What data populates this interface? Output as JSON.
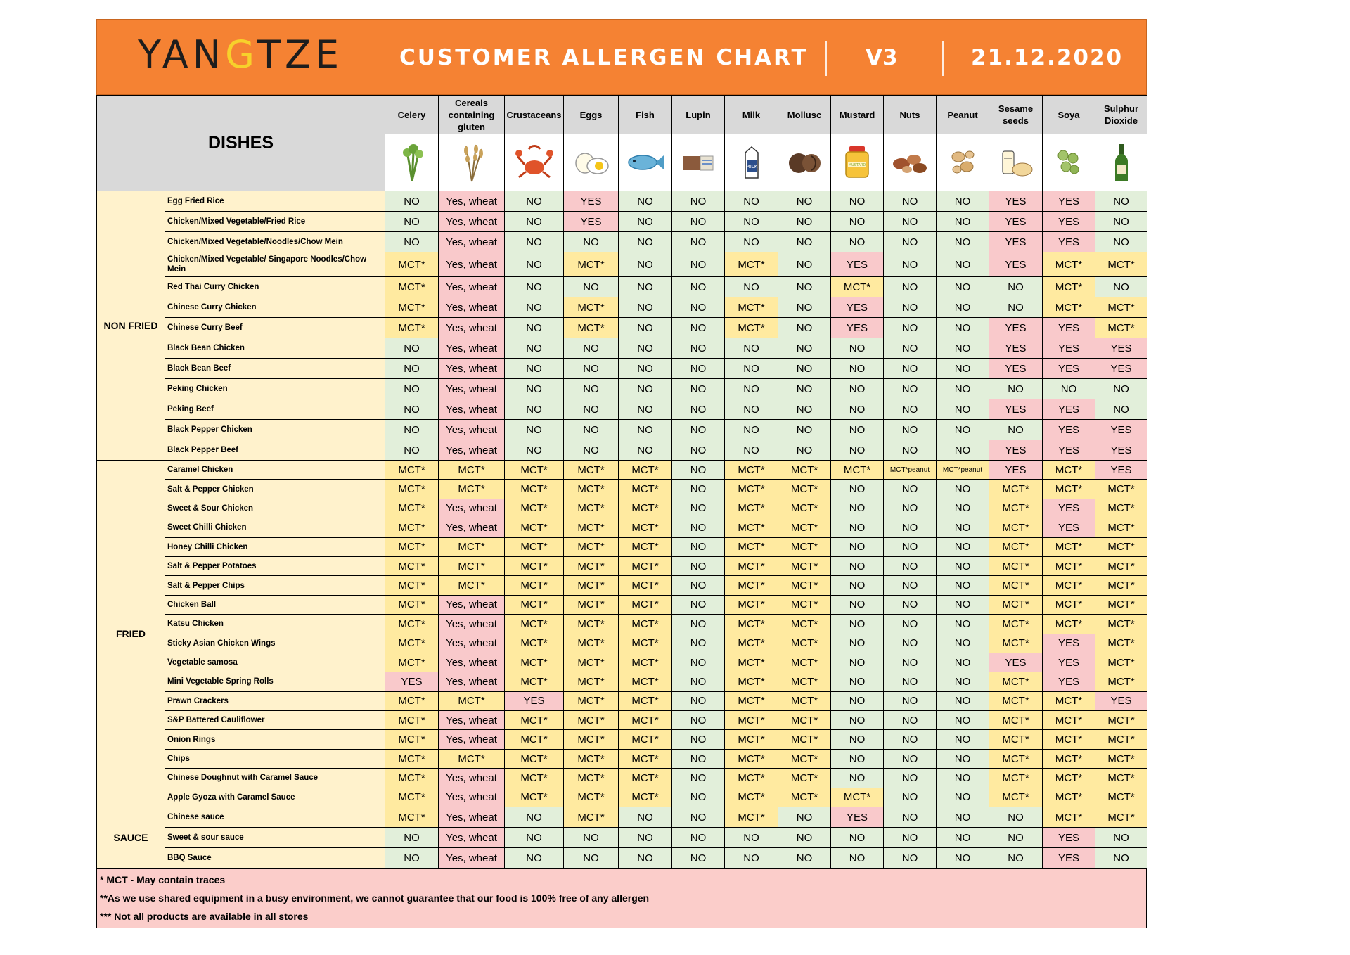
{
  "header": {
    "logo": "YANGTZE",
    "title": "CUSTOMER ALLERGEN CHART",
    "version": "V3",
    "date": "21.12.2020"
  },
  "table": {
    "dishes_label": "DISHES",
    "allergens": [
      {
        "label": "Celery",
        "icon": "celery-icon"
      },
      {
        "label": "Cereals containing gluten",
        "icon": "wheat-icon"
      },
      {
        "label": "Crustaceans",
        "icon": "crab-icon"
      },
      {
        "label": "Eggs",
        "icon": "egg-icon"
      },
      {
        "label": "Fish",
        "icon": "fish-icon"
      },
      {
        "label": "Lupin",
        "icon": "lupin-icon"
      },
      {
        "label": "Milk",
        "icon": "milk-icon"
      },
      {
        "label": "Mollusc",
        "icon": "mollusc-icon"
      },
      {
        "label": "Mustard",
        "icon": "mustard-icon"
      },
      {
        "label": "Nuts",
        "icon": "nuts-icon"
      },
      {
        "label": "Peanut",
        "icon": "peanut-icon"
      },
      {
        "label": "Sesame seeds",
        "icon": "sesame-icon"
      },
      {
        "label": "Soya",
        "icon": "soya-icon"
      },
      {
        "label": "Sulphur Dioxide",
        "icon": "wine-bottle-icon"
      }
    ],
    "categories": [
      {
        "name": "NON FRIED",
        "dishes": [
          {
            "name": "Egg Fried Rice",
            "values": [
              "NO",
              "Yes, wheat",
              "NO",
              "YES",
              "NO",
              "NO",
              "NO",
              "NO",
              "NO",
              "NO",
              "NO",
              "YES",
              "YES",
              "NO"
            ]
          },
          {
            "name": "Chicken/Mixed Vegetable/Fried Rice",
            "values": [
              "NO",
              "Yes, wheat",
              "NO",
              "YES",
              "NO",
              "NO",
              "NO",
              "NO",
              "NO",
              "NO",
              "NO",
              "YES",
              "YES",
              "NO"
            ]
          },
          {
            "name": "Chicken/Mixed Vegetable/Noodles/Chow Mein",
            "values": [
              "NO",
              "Yes, wheat",
              "NO",
              "NO",
              "NO",
              "NO",
              "NO",
              "NO",
              "NO",
              "NO",
              "NO",
              "YES",
              "YES",
              "NO"
            ]
          },
          {
            "name": "Chicken/Mixed Vegetable/ Singapore Noodles/Chow Mein",
            "values": [
              "MCT*",
              "Yes, wheat",
              "NO",
              "MCT*",
              "NO",
              "NO",
              "MCT*",
              "NO",
              "YES",
              "NO",
              "NO",
              "YES",
              "MCT*",
              "MCT*"
            ]
          },
          {
            "name": "Red Thai Curry Chicken",
            "values": [
              "MCT*",
              "Yes, wheat",
              "NO",
              "NO",
              "NO",
              "NO",
              "NO",
              "NO",
              "MCT*",
              "NO",
              "NO",
              "NO",
              "MCT*",
              "NO"
            ]
          },
          {
            "name": "Chinese Curry Chicken",
            "values": [
              "MCT*",
              "Yes, wheat",
              "NO",
              "MCT*",
              "NO",
              "NO",
              "MCT*",
              "NO",
              "YES",
              "NO",
              "NO",
              "NO",
              "MCT*",
              "MCT*"
            ]
          },
          {
            "name": "Chinese Curry Beef",
            "values": [
              "MCT*",
              "Yes, wheat",
              "NO",
              "MCT*",
              "NO",
              "NO",
              "MCT*",
              "NO",
              "YES",
              "NO",
              "NO",
              "YES",
              "YES",
              "MCT*"
            ]
          },
          {
            "name": "Black Bean Chicken",
            "values": [
              "NO",
              "Yes, wheat",
              "NO",
              "NO",
              "NO",
              "NO",
              "NO",
              "NO",
              "NO",
              "NO",
              "NO",
              "YES",
              "YES",
              "YES"
            ]
          },
          {
            "name": "Black Bean Beef",
            "values": [
              "NO",
              "Yes, wheat",
              "NO",
              "NO",
              "NO",
              "NO",
              "NO",
              "NO",
              "NO",
              "NO",
              "NO",
              "YES",
              "YES",
              "YES"
            ]
          },
          {
            "name": "Peking Chicken",
            "values": [
              "NO",
              "Yes, wheat",
              "NO",
              "NO",
              "NO",
              "NO",
              "NO",
              "NO",
              "NO",
              "NO",
              "NO",
              "NO",
              "NO",
              "NO"
            ]
          },
          {
            "name": "Peking Beef",
            "values": [
              "NO",
              "Yes, wheat",
              "NO",
              "NO",
              "NO",
              "NO",
              "NO",
              "NO",
              "NO",
              "NO",
              "NO",
              "YES",
              "YES",
              "NO"
            ]
          },
          {
            "name": "Black Pepper Chicken",
            "values": [
              "NO",
              "Yes, wheat",
              "NO",
              "NO",
              "NO",
              "NO",
              "NO",
              "NO",
              "NO",
              "NO",
              "NO",
              "NO",
              "YES",
              "YES"
            ]
          },
          {
            "name": "Black Pepper Beef",
            "values": [
              "NO",
              "Yes, wheat",
              "NO",
              "NO",
              "NO",
              "NO",
              "NO",
              "NO",
              "NO",
              "NO",
              "NO",
              "YES",
              "YES",
              "YES"
            ]
          }
        ]
      },
      {
        "name": "FRIED",
        "dishes": [
          {
            "name": "Caramel Chicken",
            "values": [
              "MCT*",
              "MCT*",
              "MCT*",
              "MCT*",
              "MCT*",
              "NO",
              "MCT*",
              "MCT*",
              "MCT*",
              "MCT*peanut",
              "MCT*peanut",
              "YES",
              "MCT*",
              "YES"
            ]
          },
          {
            "name": "Salt & Pepper Chicken",
            "values": [
              "MCT*",
              "MCT*",
              "MCT*",
              "MCT*",
              "MCT*",
              "NO",
              "MCT*",
              "MCT*",
              "NO",
              "NO",
              "NO",
              "MCT*",
              "MCT*",
              "MCT*"
            ]
          },
          {
            "name": "Sweet & Sour Chicken",
            "values": [
              "MCT*",
              "Yes, wheat",
              "MCT*",
              "MCT*",
              "MCT*",
              "NO",
              "MCT*",
              "MCT*",
              "NO",
              "NO",
              "NO",
              "MCT*",
              "YES",
              "MCT*"
            ]
          },
          {
            "name": "Sweet Chilli Chicken",
            "values": [
              "MCT*",
              "Yes, wheat",
              "MCT*",
              "MCT*",
              "MCT*",
              "NO",
              "MCT*",
              "MCT*",
              "NO",
              "NO",
              "NO",
              "MCT*",
              "YES",
              "MCT*"
            ]
          },
          {
            "name": "Honey Chilli Chicken",
            "values": [
              "MCT*",
              "MCT*",
              "MCT*",
              "MCT*",
              "MCT*",
              "NO",
              "MCT*",
              "MCT*",
              "NO",
              "NO",
              "NO",
              "MCT*",
              "MCT*",
              "MCT*"
            ]
          },
          {
            "name": "Salt & Pepper Potatoes",
            "values": [
              "MCT*",
              "MCT*",
              "MCT*",
              "MCT*",
              "MCT*",
              "NO",
              "MCT*",
              "MCT*",
              "NO",
              "NO",
              "NO",
              "MCT*",
              "MCT*",
              "MCT*"
            ]
          },
          {
            "name": "Salt & Pepper Chips",
            "values": [
              "MCT*",
              "MCT*",
              "MCT*",
              "MCT*",
              "MCT*",
              "NO",
              "MCT*",
              "MCT*",
              "NO",
              "NO",
              "NO",
              "MCT*",
              "MCT*",
              "MCT*"
            ]
          },
          {
            "name": "Chicken Ball",
            "values": [
              "MCT*",
              "Yes, wheat",
              "MCT*",
              "MCT*",
              "MCT*",
              "NO",
              "MCT*",
              "MCT*",
              "NO",
              "NO",
              "NO",
              "MCT*",
              "MCT*",
              "MCT*"
            ]
          },
          {
            "name": "Katsu Chicken",
            "values": [
              "MCT*",
              "Yes, wheat",
              "MCT*",
              "MCT*",
              "MCT*",
              "NO",
              "MCT*",
              "MCT*",
              "NO",
              "NO",
              "NO",
              "MCT*",
              "MCT*",
              "MCT*"
            ]
          },
          {
            "name": "Sticky Asian Chicken Wings",
            "values": [
              "MCT*",
              "Yes, wheat",
              "MCT*",
              "MCT*",
              "MCT*",
              "NO",
              "MCT*",
              "MCT*",
              "NO",
              "NO",
              "NO",
              "MCT*",
              "YES",
              "MCT*"
            ]
          },
          {
            "name": "Vegetable samosa",
            "values": [
              "MCT*",
              "Yes, wheat",
              "MCT*",
              "MCT*",
              "MCT*",
              "NO",
              "MCT*",
              "MCT*",
              "NO",
              "NO",
              "NO",
              "YES",
              "YES",
              "MCT*"
            ]
          },
          {
            "name": "Mini Vegetable Spring Rolls",
            "values": [
              "YES",
              "Yes, wheat",
              "MCT*",
              "MCT*",
              "MCT*",
              "NO",
              "MCT*",
              "MCT*",
              "NO",
              "NO",
              "NO",
              "MCT*",
              "YES",
              "MCT*"
            ]
          },
          {
            "name": "Prawn Crackers",
            "values": [
              "MCT*",
              "MCT*",
              "YES",
              "MCT*",
              "MCT*",
              "NO",
              "MCT*",
              "MCT*",
              "NO",
              "NO",
              "NO",
              "MCT*",
              "MCT*",
              "YES"
            ]
          },
          {
            "name": "S&P Battered Cauliflower",
            "values": [
              "MCT*",
              "Yes, wheat",
              "MCT*",
              "MCT*",
              "MCT*",
              "NO",
              "MCT*",
              "MCT*",
              "NO",
              "NO",
              "NO",
              "MCT*",
              "MCT*",
              "MCT*"
            ]
          },
          {
            "name": "Onion Rings",
            "values": [
              "MCT*",
              "Yes, wheat",
              "MCT*",
              "MCT*",
              "MCT*",
              "NO",
              "MCT*",
              "MCT*",
              "NO",
              "NO",
              "NO",
              "MCT*",
              "MCT*",
              "MCT*"
            ]
          },
          {
            "name": "Chips",
            "values": [
              "MCT*",
              "MCT*",
              "MCT*",
              "MCT*",
              "MCT*",
              "NO",
              "MCT*",
              "MCT*",
              "NO",
              "NO",
              "NO",
              "MCT*",
              "MCT*",
              "MCT*"
            ]
          },
          {
            "name": "Chinese Doughnut with Caramel Sauce",
            "values": [
              "MCT*",
              "Yes, wheat",
              "MCT*",
              "MCT*",
              "MCT*",
              "NO",
              "MCT*",
              "MCT*",
              "NO",
              "NO",
              "NO",
              "MCT*",
              "MCT*",
              "MCT*"
            ]
          },
          {
            "name": "Apple Gyoza with Caramel Sauce",
            "values": [
              "MCT*",
              "Yes, wheat",
              "MCT*",
              "MCT*",
              "MCT*",
              "NO",
              "MCT*",
              "MCT*",
              "MCT*",
              "NO",
              "NO",
              "MCT*",
              "MCT*",
              "MCT*"
            ]
          }
        ]
      },
      {
        "name": "SAUCE",
        "dishes": [
          {
            "name": "Chinese sauce",
            "values": [
              "MCT*",
              "Yes, wheat",
              "NO",
              "MCT*",
              "NO",
              "NO",
              "MCT*",
              "NO",
              "YES",
              "NO",
              "NO",
              "NO",
              "MCT*",
              "MCT*"
            ]
          },
          {
            "name": "Sweet & sour sauce",
            "values": [
              "NO",
              "Yes, wheat",
              "NO",
              "NO",
              "NO",
              "NO",
              "NO",
              "NO",
              "NO",
              "NO",
              "NO",
              "NO",
              "YES",
              "NO"
            ]
          },
          {
            "name": "BBQ Sauce",
            "values": [
              "NO",
              "Yes, wheat",
              "NO",
              "NO",
              "NO",
              "NO",
              "NO",
              "NO",
              "NO",
              "NO",
              "NO",
              "NO",
              "YES",
              "NO"
            ]
          }
        ]
      }
    ]
  },
  "colors": {
    "banner": "#f58233",
    "no": "#e2efda",
    "yes": "#f9c9cb",
    "mct": "#ffeaa0",
    "dish_bg": "#fff2cc",
    "notes_bg": "#fbcdca"
  },
  "notes": [
    "*  MCT - May contain traces",
    "**As we use shared equipment in a busy environment, we cannot guarantee that our food is 100% free of any allergen",
    "*** Not all products are available in all stores"
  ]
}
